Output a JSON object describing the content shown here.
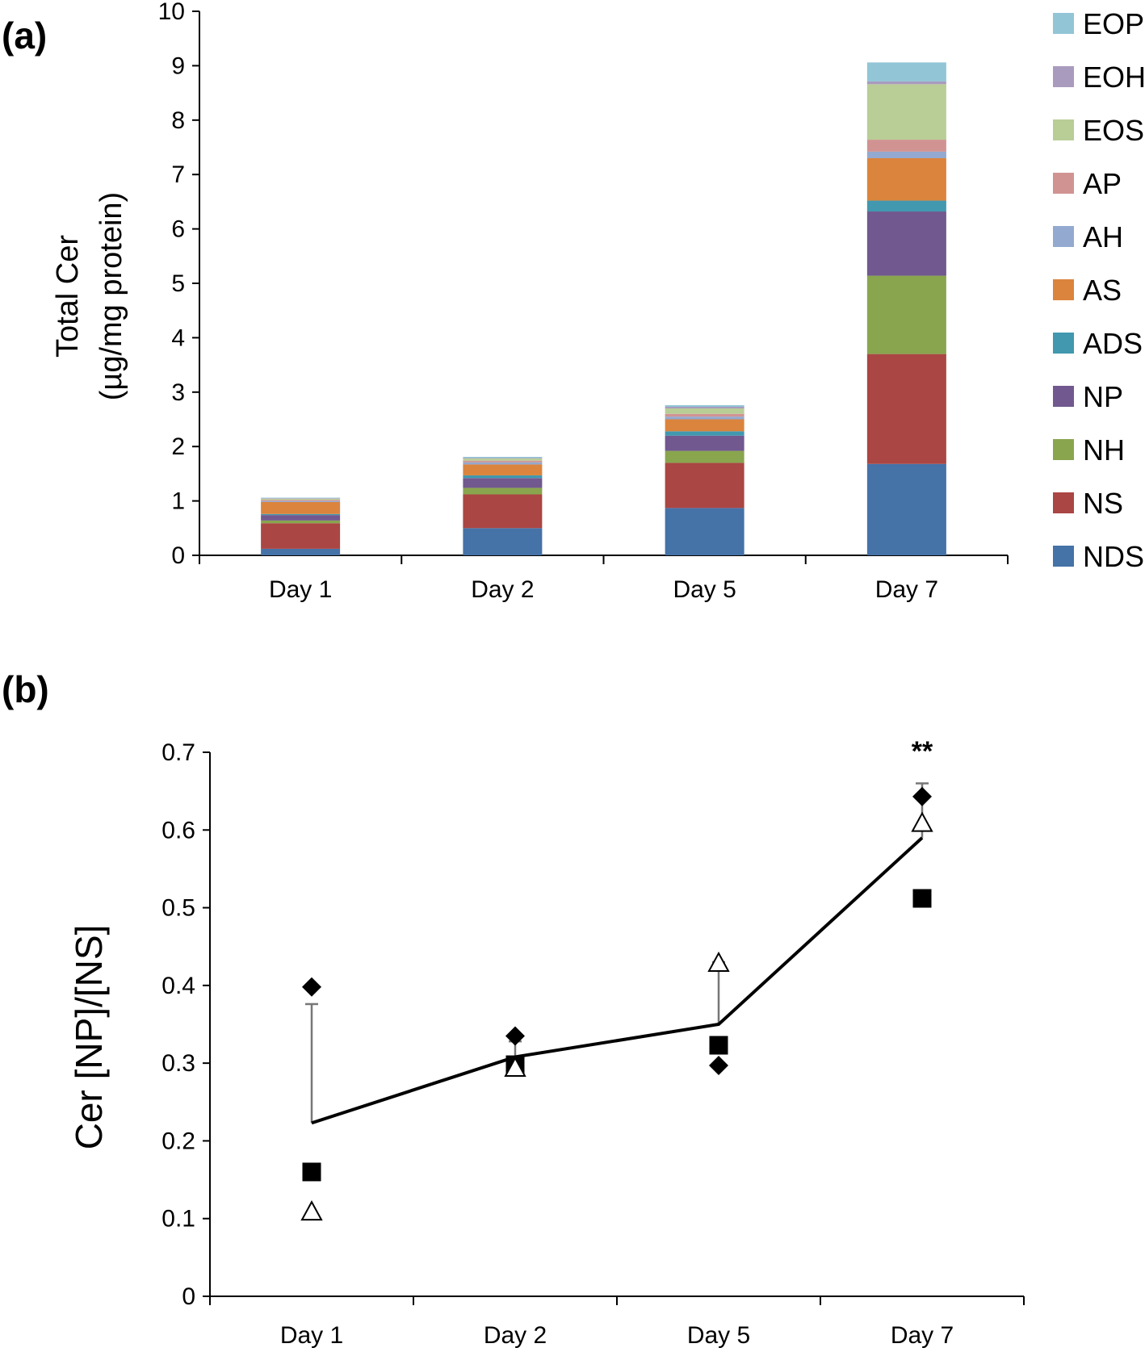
{
  "chart_data": [
    {
      "panel": "(a)",
      "type": "bar",
      "stacked": true,
      "title": "",
      "xlabel": "",
      "ylabel": "Total Cer",
      "ylabel_unit": "(µg/mg protein)",
      "ylim": [
        0,
        10
      ],
      "yticks": [
        0,
        1,
        2,
        3,
        4,
        5,
        6,
        7,
        8,
        9,
        10
      ],
      "grid": false,
      "legend_position": "right",
      "categories": [
        "Day 1",
        "Day 2",
        "Day 5",
        "Day 7"
      ],
      "series": [
        {
          "name": "NDS",
          "color": "#4572A7",
          "values": [
            0.12,
            0.5,
            0.87,
            1.68
          ]
        },
        {
          "name": "NS",
          "color": "#AA4643",
          "values": [
            0.47,
            0.62,
            0.83,
            2.02
          ]
        },
        {
          "name": "NH",
          "color": "#89A54E",
          "values": [
            0.05,
            0.12,
            0.22,
            1.44
          ]
        },
        {
          "name": "NP",
          "color": "#71588F",
          "values": [
            0.1,
            0.18,
            0.28,
            1.18
          ]
        },
        {
          "name": "ADS",
          "color": "#4198AF",
          "values": [
            0.02,
            0.05,
            0.08,
            0.2
          ]
        },
        {
          "name": "AS",
          "color": "#DB843D",
          "values": [
            0.22,
            0.2,
            0.22,
            0.78
          ]
        },
        {
          "name": "AH",
          "color": "#93A9CF",
          "values": [
            0.02,
            0.04,
            0.05,
            0.12
          ]
        },
        {
          "name": "AP",
          "color": "#D19392",
          "values": [
            0.02,
            0.03,
            0.05,
            0.22
          ]
        },
        {
          "name": "EOS",
          "color": "#B9CD96",
          "values": [
            0.02,
            0.04,
            0.1,
            1.02
          ]
        },
        {
          "name": "EOH",
          "color": "#A99BBD",
          "values": [
            0.01,
            0.01,
            0.03,
            0.05
          ]
        },
        {
          "name": "EOP",
          "color": "#92C5D6",
          "values": [
            0.01,
            0.02,
            0.03,
            0.35
          ]
        }
      ]
    },
    {
      "panel": "(b)",
      "type": "line",
      "title": "",
      "xlabel": "",
      "ylabel": "Cer [NP]/[NS]",
      "ylim": [
        0,
        0.7
      ],
      "yticks": [
        "0",
        "0.1",
        "0.2",
        "0.3",
        "0.4",
        "0.5",
        "0.6",
        "0.7"
      ],
      "grid": false,
      "categories": [
        "Day 1",
        "Day 2",
        "Day 5",
        "Day 7"
      ],
      "mean": {
        "values": [
          0.223,
          0.308,
          0.35,
          0.59
        ],
        "errors": [
          0.153,
          0.02,
          0.08,
          0.07
        ]
      },
      "points": [
        {
          "marker": "diamond",
          "values": [
            0.398,
            0.335,
            0.297,
            0.643
          ]
        },
        {
          "marker": "square",
          "values": [
            0.16,
            0.298,
            0.323,
            0.512
          ]
        },
        {
          "marker": "triangle",
          "values": [
            0.11,
            0.295,
            0.43,
            0.61
          ]
        }
      ],
      "annotations": [
        {
          "category": "Day 7",
          "text": "**"
        }
      ]
    }
  ]
}
